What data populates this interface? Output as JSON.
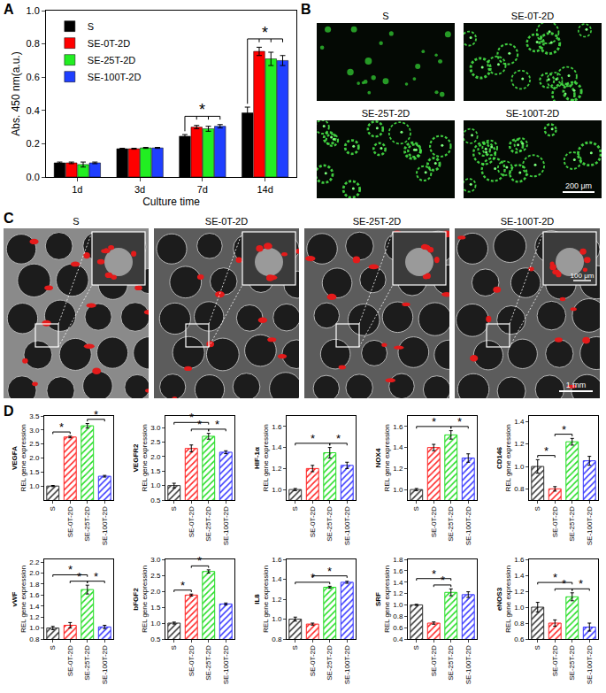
{
  "panel_labels": [
    "A",
    "B",
    "C",
    "D"
  ],
  "chart_data": [
    {
      "type": "bar",
      "x_label": "Culture time",
      "y_label": "Abs. 450 nm(a.u.)",
      "categories": [
        "1d",
        "3d",
        "7d",
        "14d"
      ],
      "series": [
        {
          "name": "S",
          "color": "#000000",
          "values": [
            0.085,
            0.17,
            0.245,
            0.385
          ],
          "errors": [
            0.005,
            0.003,
            0.01,
            0.035
          ]
        },
        {
          "name": "SE-0T-2D",
          "color": "#ff0000",
          "values": [
            0.085,
            0.17,
            0.3,
            0.755
          ],
          "errors": [
            0.005,
            0.003,
            0.01,
            0.025
          ]
        },
        {
          "name": "SE-25T-2D",
          "color": "#22ee22",
          "values": [
            0.075,
            0.175,
            0.29,
            0.71
          ],
          "errors": [
            0.015,
            0.003,
            0.015,
            0.04
          ]
        },
        {
          "name": "SE-100T-2D",
          "color": "#1f3fff",
          "values": [
            0.085,
            0.175,
            0.305,
            0.7
          ],
          "errors": [
            0.005,
            0.003,
            0.01,
            0.03
          ]
        }
      ],
      "ylim": [
        0,
        1.0
      ],
      "yticks": [
        {
          "value": 0,
          "label": "0.0"
        },
        0.2,
        0.4,
        0.6,
        0.8,
        {
          "value": 1.0,
          "label": "1.0"
        }
      ],
      "legend": "top left",
      "significance": [
        {
          "category": "7d",
          "label": "*"
        },
        {
          "category": "14d",
          "label": "*"
        }
      ]
    },
    {
      "type": "bar",
      "title": "VEGFA",
      "y_label": "REL gene expression",
      "marker": "hatched",
      "categories": [
        "S",
        "SE-0T-2D",
        "SE-25T-2D",
        "SE-100T-2D"
      ],
      "values": [
        1.0,
        2.75,
        3.15,
        1.35
      ],
      "errors": [
        0.02,
        0.03,
        0.08,
        0.03
      ],
      "colors": [
        "#333333",
        "#ff2020",
        "#22dd22",
        "#3333ff"
      ],
      "ylim": [
        0.5,
        3.5
      ],
      "yticks": [
        {
          "value": 1.0,
          "label": "1.0"
        },
        1.5,
        {
          "value": 2.0,
          "label": "2.0"
        },
        2.5,
        {
          "value": 3.0,
          "label": "3.0"
        },
        3.5
      ],
      "comparisons": [
        {
          "from": "S",
          "to": "SE-0T-2D",
          "label": "*"
        },
        {
          "from": "SE-25T-2D",
          "to": "SE-100T-2D",
          "label": "*"
        }
      ]
    },
    {
      "type": "bar",
      "title": "VEGFR2",
      "y_label": "REL gene expression",
      "marker": "hatched",
      "categories": [
        "S",
        "SE-0T-2D",
        "SE-25T-2D",
        "SE-100T-2D"
      ],
      "values": [
        1.0,
        2.28,
        2.7,
        2.15
      ],
      "errors": [
        0.08,
        0.12,
        0.1,
        0.05
      ],
      "colors": [
        "#333333",
        "#ff2020",
        "#22dd22",
        "#3333ff"
      ],
      "ylim": [
        0.5,
        3.4
      ],
      "yticks": [
        0.5,
        {
          "value": 1.0,
          "label": "1.0"
        },
        1.5,
        {
          "value": 2.0,
          "label": "2.0"
        },
        2.5,
        {
          "value": 3.0,
          "label": "3.0"
        }
      ],
      "comparisons": [
        {
          "from": "S",
          "to": "SE-25T-2D",
          "label": "*"
        },
        {
          "from": "SE-0T-2D",
          "to": "SE-25T-2D",
          "label": "*"
        },
        {
          "from": "SE-25T-2D",
          "to": "SE-100T-2D",
          "label": "*"
        }
      ]
    },
    {
      "type": "bar",
      "title": "HIF-1α",
      "y_label": "REL gene expression",
      "marker": "hatched",
      "categories": [
        "S",
        "SE-0T-2D",
        "SE-25T-2D",
        "SE-100T-2D"
      ],
      "values": [
        1.0,
        1.2,
        1.35,
        1.23
      ],
      "errors": [
        0.01,
        0.03,
        0.05,
        0.03
      ],
      "colors": [
        "#333333",
        "#ff2020",
        "#22dd22",
        "#3333ff"
      ],
      "ylim": [
        0.9,
        1.7
      ],
      "yticks": [
        {
          "value": 1.0,
          "label": "1.0"
        },
        1.2,
        1.4,
        1.6
      ],
      "comparisons": [
        {
          "from": "S",
          "to": "SE-25T-2D",
          "label": "*"
        },
        {
          "from": "SE-25T-2D",
          "to": "SE-100T-2D",
          "label": "*"
        }
      ]
    },
    {
      "type": "bar",
      "title": "NOX4",
      "y_label": "REL gene expression",
      "marker": "hatched",
      "categories": [
        "S",
        "SE-0T-2D",
        "SE-25T-2D",
        "SE-100T-2D"
      ],
      "values": [
        1.0,
        1.4,
        1.52,
        1.3
      ],
      "errors": [
        0.01,
        0.03,
        0.04,
        0.04
      ],
      "colors": [
        "#333333",
        "#ff2020",
        "#22dd22",
        "#3333ff"
      ],
      "ylim": [
        0.9,
        1.7
      ],
      "yticks": [
        {
          "value": 1.0,
          "label": "1.0"
        },
        1.2,
        1.4,
        1.6
      ],
      "comparisons": [
        {
          "from": "S",
          "to": "SE-25T-2D",
          "label": "*"
        },
        {
          "from": "SE-25T-2D",
          "to": "SE-100T-2D",
          "label": "*"
        }
      ]
    },
    {
      "type": "bar",
      "title": "CD146",
      "y_label": "REL gene expression",
      "marker": "hatched",
      "categories": [
        "S",
        "SE-0T-2D",
        "SE-25T-2D",
        "SE-100T-2D"
      ],
      "values": [
        1.0,
        0.8,
        1.22,
        1.05
      ],
      "errors": [
        0.06,
        0.02,
        0.03,
        0.04
      ],
      "colors": [
        "#333333",
        "#ff2020",
        "#22dd22",
        "#3333ff"
      ],
      "ylim": [
        0.7,
        1.45
      ],
      "yticks": [
        0.8,
        {
          "value": 1.0,
          "label": "1.0"
        },
        1.2,
        1.4
      ],
      "comparisons": [
        {
          "from": "S",
          "to": "SE-0T-2D",
          "label": "*"
        },
        {
          "from": "SE-0T-2D",
          "to": "SE-25T-2D",
          "label": "*"
        }
      ]
    },
    {
      "type": "bar",
      "title": "vWF",
      "y_label": "REL gene expression",
      "marker": "hatched",
      "categories": [
        "S",
        "SE-0T-2D",
        "SE-25T-2D",
        "SE-100T-2D"
      ],
      "values": [
        1.0,
        1.05,
        1.7,
        1.02
      ],
      "errors": [
        0.03,
        0.05,
        0.08,
        0.03
      ],
      "colors": [
        "#333333",
        "#ff2020",
        "#22dd22",
        "#3333ff"
      ],
      "ylim": [
        0.8,
        2.25
      ],
      "yticks": [
        0.8,
        {
          "value": 1.0,
          "label": "1.0"
        },
        1.2,
        1.4,
        1.6,
        1.8,
        {
          "value": 2.0,
          "label": "2.0"
        },
        2.2
      ],
      "comparisons": [
        {
          "from": "S",
          "to": "SE-25T-2D",
          "label": "*"
        },
        {
          "from": "SE-0T-2D",
          "to": "SE-25T-2D",
          "label": "*"
        },
        {
          "from": "SE-25T-2D",
          "to": "SE-100T-2D",
          "label": "*"
        }
      ]
    },
    {
      "type": "bar",
      "title": "bFGF2",
      "y_label": "REL gene expression",
      "marker": "hatched",
      "categories": [
        "S",
        "SE-0T-2D",
        "SE-25T-2D",
        "SE-100T-2D"
      ],
      "values": [
        1.0,
        1.88,
        2.62,
        1.6
      ],
      "errors": [
        0.03,
        0.03,
        0.05,
        0.03
      ],
      "colors": [
        "#333333",
        "#ff2020",
        "#22dd22",
        "#3333ff"
      ],
      "ylim": [
        0.5,
        3.0
      ],
      "yticks": [
        0.5,
        {
          "value": 1.0,
          "label": "1.0"
        },
        1.5,
        {
          "value": 2.0,
          "label": "2.0"
        },
        2.5,
        {
          "value": 3.0,
          "label": "3.0"
        }
      ],
      "comparisons": [
        {
          "from": "S",
          "to": "SE-0T-2D",
          "label": "*"
        },
        {
          "from": "SE-0T-2D",
          "to": "SE-25T-2D",
          "label": "*"
        }
      ]
    },
    {
      "type": "bar",
      "title": "IL8",
      "y_label": "REL gene expression",
      "marker": "hatched",
      "categories": [
        "S",
        "SE-0T-2D",
        "SE-25T-2D",
        "SE-100T-2D"
      ],
      "values": [
        1.0,
        0.95,
        1.32,
        1.37
      ],
      "errors": [
        0.02,
        0.01,
        0.01,
        0.01
      ],
      "colors": [
        "#333333",
        "#ff2020",
        "#22dd22",
        "#3333ff"
      ],
      "ylim": [
        0.8,
        1.6
      ],
      "yticks": [
        0.8,
        {
          "value": 1.0,
          "label": "1.0"
        },
        1.2,
        1.4,
        1.6
      ],
      "comparisons": [
        {
          "from": "S",
          "to": "SE-25T-2D",
          "label": "*"
        },
        {
          "from": "SE-0T-2D",
          "to": "SE-100T-2D",
          "label": "*"
        }
      ]
    },
    {
      "type": "bar",
      "title": "SRF",
      "y_label": "REL gene expression",
      "marker": "hatched",
      "categories": [
        "S",
        "SE-0T-2D",
        "SE-25T-2D",
        "SE-100T-2D"
      ],
      "values": [
        1.0,
        0.68,
        1.22,
        1.18
      ],
      "errors": [
        0.01,
        0.02,
        0.06,
        0.05
      ],
      "colors": [
        "#333333",
        "#ff2020",
        "#22dd22",
        "#3333ff"
      ],
      "ylim": [
        0.4,
        1.8
      ],
      "yticks": [
        0.4,
        0.6,
        0.8,
        {
          "value": 1.0,
          "label": "1.0"
        },
        1.2,
        1.4,
        1.6,
        1.8
      ],
      "comparisons": [
        {
          "from": "S",
          "to": "SE-25T-2D",
          "label": "*"
        },
        {
          "from": "SE-0T-2D",
          "to": "SE-25T-2D",
          "label": "*"
        }
      ]
    },
    {
      "type": "bar",
      "title": "eNOS3",
      "y_label": "REL gene expression",
      "marker": "hatched",
      "categories": [
        "S",
        "SE-0T-2D",
        "SE-25T-2D",
        "SE-100T-2D"
      ],
      "values": [
        1.0,
        0.8,
        1.13,
        0.75
      ],
      "errors": [
        0.06,
        0.04,
        0.05,
        0.05
      ],
      "colors": [
        "#333333",
        "#ff2020",
        "#22dd22",
        "#3333ff"
      ],
      "ylim": [
        0.6,
        1.6
      ],
      "yticks": [
        0.6,
        0.8,
        {
          "value": 1.0,
          "label": "1.0"
        },
        1.2,
        1.4,
        1.6
      ],
      "comparisons": [
        {
          "from": "S",
          "to": "SE-25T-2D",
          "label": "*"
        },
        {
          "from": "SE-0T-2D",
          "to": "SE-25T-2D",
          "label": "*"
        },
        {
          "from": "SE-25T-2D",
          "to": "SE-100T-2D",
          "label": "*"
        }
      ]
    }
  ],
  "image_panels": [
    {
      "images": [
        "S",
        "SE-0T-2D",
        "SE-25T-2D",
        "SE-100T-2D"
      ],
      "scale_bar": "200 μm"
    },
    {
      "images": [
        "S",
        "SE-0T-2D",
        "SE-25T-2D",
        "SE-100T-2D"
      ],
      "scale_bar": "1 mm",
      "inset_scale_bar": "100 μm"
    }
  ]
}
